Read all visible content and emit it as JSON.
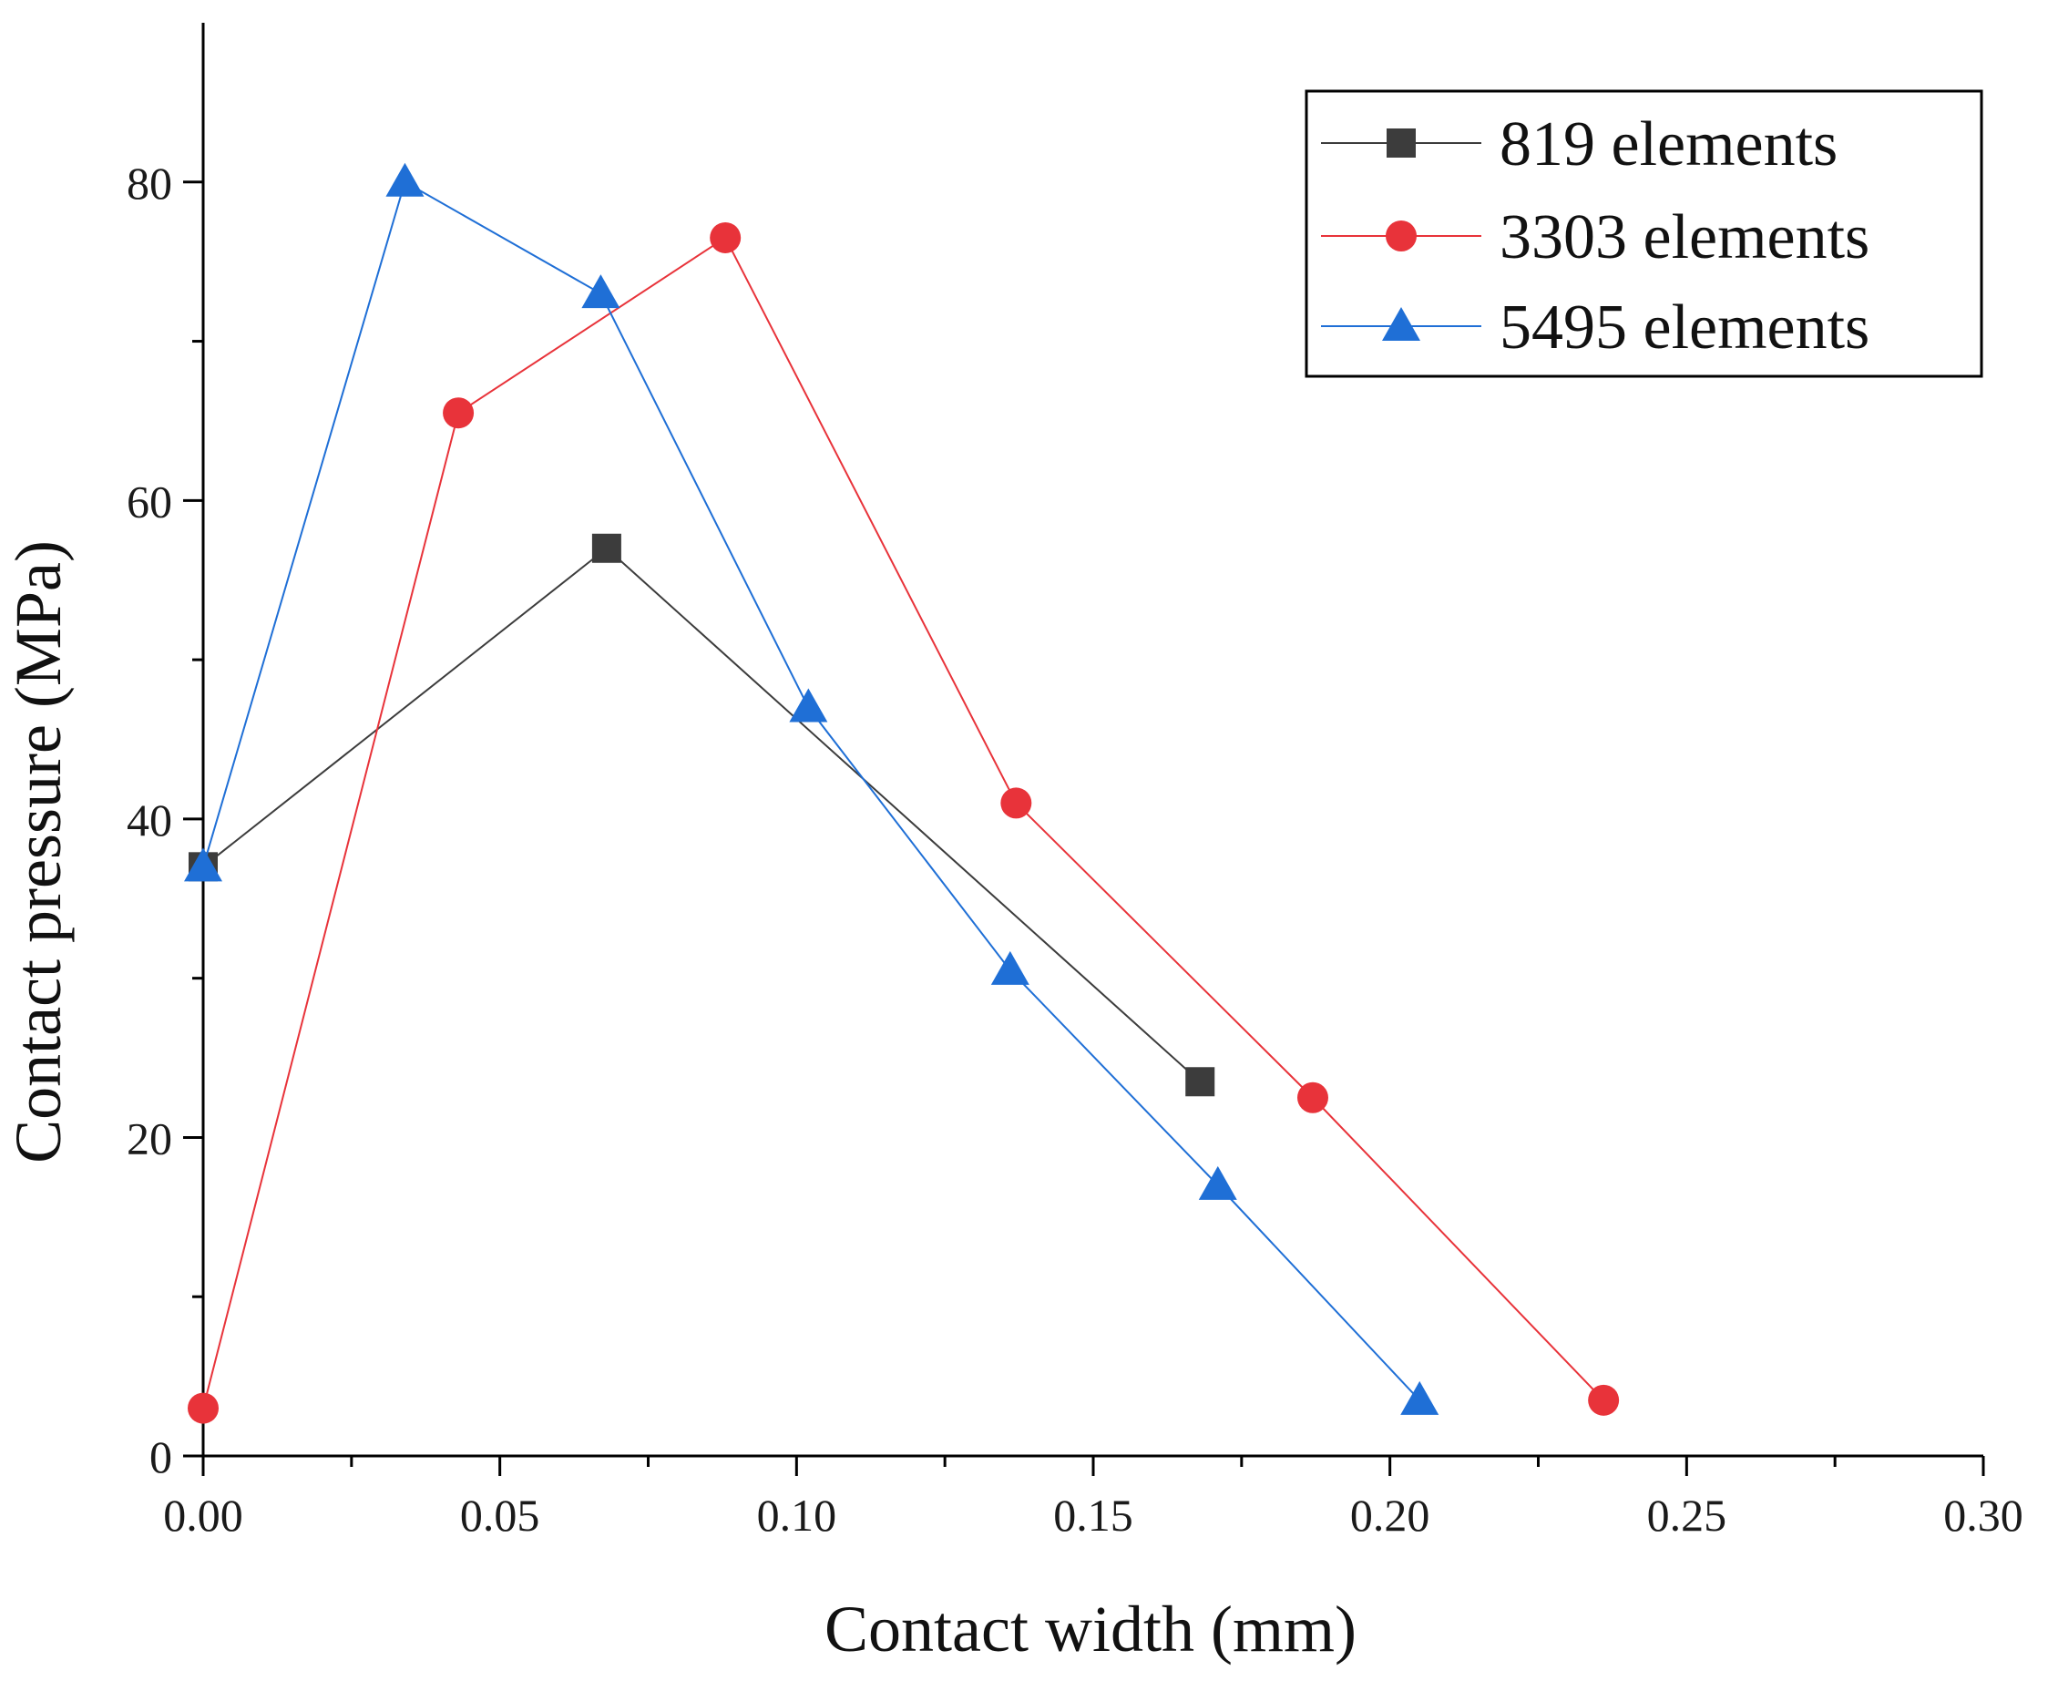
{
  "chart_data": {
    "type": "line",
    "title": "",
    "xlabel": "Contact width (mm)",
    "ylabel": "Contact pressure (MPa)",
    "xlim": [
      0,
      0.3
    ],
    "ylim": [
      0,
      90
    ],
    "x_ticks": [
      0.0,
      0.05,
      0.1,
      0.15,
      0.2,
      0.25,
      0.3
    ],
    "x_tick_labels": [
      "0.00",
      "0.05",
      "0.10",
      "0.15",
      "0.20",
      "0.25",
      "0.30"
    ],
    "y_ticks": [
      0,
      20,
      40,
      60,
      80
    ],
    "y_tick_labels": [
      "0",
      "20",
      "40",
      "60",
      "80"
    ],
    "grid": false,
    "legend_position": "top-right",
    "series": [
      {
        "name": "819 elements",
        "color": "#3c3c3c",
        "marker": "square",
        "x": [
          0.0,
          0.068,
          0.168
        ],
        "y": [
          37.0,
          57.0,
          23.5
        ]
      },
      {
        "name": "3303 elements",
        "color": "#e8333a",
        "marker": "circle",
        "x": [
          0.0,
          0.043,
          0.088,
          0.137,
          0.187,
          0.236
        ],
        "y": [
          3.0,
          65.5,
          76.5,
          41.0,
          22.5,
          3.5
        ]
      },
      {
        "name": "5495 elements",
        "color": "#1f6fd6",
        "marker": "triangle",
        "x": [
          0.0,
          0.034,
          0.067,
          0.102,
          0.136,
          0.171,
          0.205
        ],
        "y": [
          37.0,
          80.0,
          73.0,
          47.0,
          30.5,
          17.0,
          3.5
        ]
      }
    ]
  }
}
